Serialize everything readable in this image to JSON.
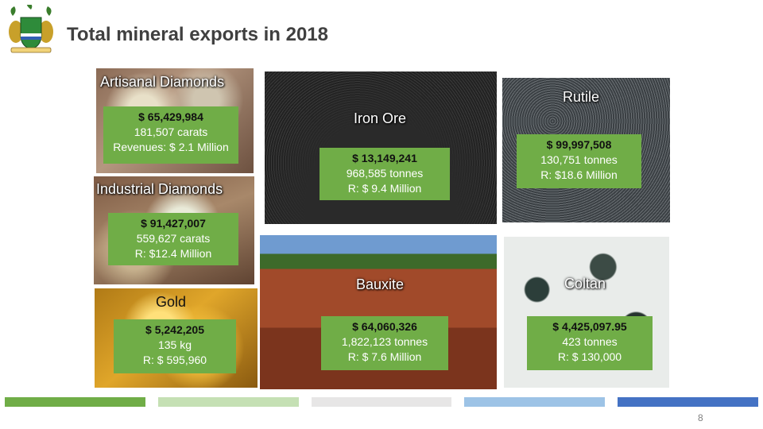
{
  "title": "Total mineral exports in 2018",
  "colors": {
    "green": "#70ad47",
    "bar_colors": [
      "#70ad47",
      "#c5e0b4",
      "#e7e6e6",
      "#9dc3e6",
      "#4472c4"
    ]
  },
  "minerals": {
    "artisanal": {
      "name": "Artisanal Diamonds",
      "value": "$ 65,429,984",
      "qty": "181,507 carats",
      "rev": "Revenues: $ 2.1 Million"
    },
    "industrial": {
      "name": "Industrial Diamonds",
      "value": "$ 91,427,007",
      "qty": "559,627 carats",
      "rev": "R: $12.4 Million"
    },
    "gold": {
      "name": "Gold",
      "value": "$ 5,242,205",
      "qty": "135 kg",
      "rev": "R: $ 595,960"
    },
    "iron": {
      "name": "Iron Ore",
      "value": "$ 13,149,241",
      "qty": "968,585 tonnes",
      "rev": "R: $ 9.4 Million"
    },
    "rutile": {
      "name": "Rutile",
      "value": "$ 99,997,508",
      "qty": "130,751 tonnes",
      "rev": "R: $18.6 Million"
    },
    "bauxite": {
      "name": "Bauxite",
      "value": "$ 64,060,326",
      "qty": "1,822,123 tonnes",
      "rev": "R: $ 7.6 Million"
    },
    "coltan": {
      "name": "Coltan",
      "value": "$ 4,425,097.95",
      "qty": "423 tonnes",
      "rev": "R: $ 130,000"
    }
  },
  "footer": {
    "page_number": "8"
  }
}
